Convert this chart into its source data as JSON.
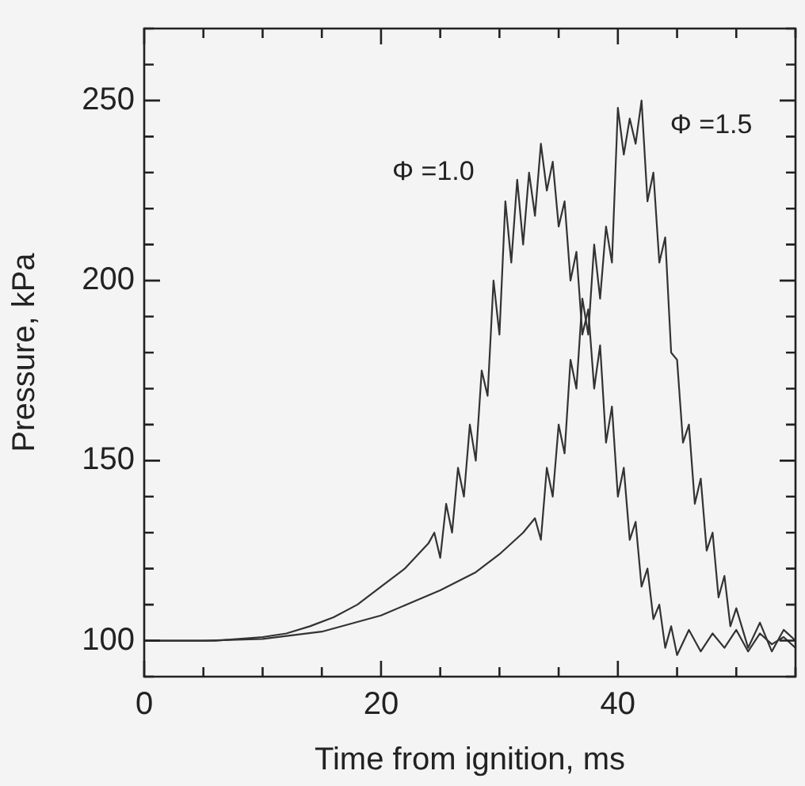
{
  "chart_data": {
    "type": "line",
    "xlabel": "Time from ignition, ms",
    "ylabel": "Pressure, kPa",
    "xlim": [
      0,
      55
    ],
    "ylim": [
      90,
      270
    ],
    "xticks": [
      0,
      {
        "value": 5,
        "label": null
      },
      {
        "value": 10,
        "label": null
      },
      {
        "value": 15,
        "label": null
      },
      20,
      {
        "value": 25,
        "label": null
      },
      {
        "value": 30,
        "label": null
      },
      {
        "value": 35,
        "label": null
      },
      40,
      {
        "value": 45,
        "label": null
      },
      {
        "value": 50,
        "label": null
      },
      {
        "value": 55,
        "label": null
      }
    ],
    "yticks": [
      {
        "value": 90,
        "label": null
      },
      100,
      {
        "value": 110,
        "label": null
      },
      {
        "value": 120,
        "label": null
      },
      {
        "value": 130,
        "label": null
      },
      {
        "value": 140,
        "label": null
      },
      150,
      {
        "value": 160,
        "label": null
      },
      {
        "value": 170,
        "label": null
      },
      {
        "value": 180,
        "label": null
      },
      {
        "value": 190,
        "label": null
      },
      200,
      {
        "value": 210,
        "label": null
      },
      {
        "value": 220,
        "label": null
      },
      {
        "value": 230,
        "label": null
      },
      {
        "value": 240,
        "label": null
      },
      250,
      {
        "value": 260,
        "label": null
      },
      {
        "value": 270,
        "label": null
      }
    ],
    "legend": false,
    "marker": "none",
    "line_style": "solid",
    "series": [
      {
        "name": "Φ =1.0",
        "color": "#333333",
        "x": [
          0,
          2,
          4,
          6,
          8,
          10,
          12,
          14,
          16,
          18,
          20,
          22,
          24,
          24.5,
          25,
          25.5,
          26,
          26.5,
          27,
          27.5,
          28,
          28.5,
          29,
          29.5,
          30,
          30.5,
          31,
          31.5,
          32,
          32.5,
          33,
          33.5,
          34,
          34.5,
          35,
          35.5,
          36,
          36.5,
          37,
          37.5,
          38,
          38.5,
          39,
          39.5,
          40,
          40.5,
          41,
          41.5,
          42,
          42.5,
          43,
          43.5,
          44,
          44.5,
          45,
          46,
          47,
          48,
          49,
          50,
          51,
          52,
          53,
          54,
          55
        ],
        "values": [
          100,
          100,
          100,
          100,
          100.5,
          101,
          102,
          104,
          106.5,
          110,
          115,
          120,
          127,
          130,
          123,
          138,
          130,
          148,
          140,
          160,
          150,
          175,
          168,
          200,
          185,
          222,
          205,
          228,
          210,
          230,
          218,
          238,
          225,
          233,
          215,
          222,
          200,
          208,
          185,
          192,
          170,
          182,
          155,
          165,
          140,
          148,
          128,
          133,
          115,
          120,
          106,
          110,
          98,
          104,
          96,
          103,
          97,
          102,
          98,
          103,
          97,
          102,
          99,
          101,
          98
        ]
      },
      {
        "name": "Φ =1.5",
        "color": "#333333",
        "x": [
          0,
          5,
          10,
          15,
          20,
          25,
          28,
          30,
          32,
          33,
          33.5,
          34,
          34.5,
          35,
          35.5,
          36,
          36.5,
          37,
          37.5,
          38,
          38.5,
          39,
          39.5,
          40,
          40.5,
          41,
          41.5,
          42,
          42.5,
          43,
          43.5,
          44,
          44.5,
          45,
          45.5,
          46,
          46.5,
          47,
          47.5,
          48,
          48.5,
          49,
          49.5,
          50,
          51,
          52,
          53,
          54,
          55
        ],
        "values": [
          100,
          100,
          100.5,
          102.5,
          107,
          114,
          119,
          124,
          130,
          134,
          128,
          148,
          140,
          160,
          152,
          178,
          170,
          195,
          185,
          210,
          195,
          215,
          205,
          248,
          235,
          245,
          238,
          250,
          222,
          230,
          205,
          212,
          180,
          178,
          155,
          160,
          138,
          145,
          125,
          130,
          112,
          118,
          104,
          109,
          98,
          105,
          97,
          103,
          100
        ]
      }
    ]
  }
}
